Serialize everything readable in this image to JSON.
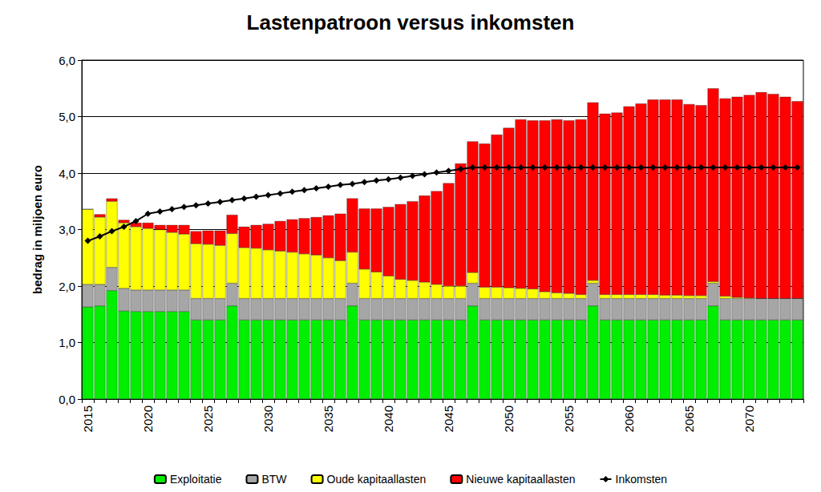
{
  "chart_data": {
    "type": "bar",
    "title": "Lastenpatroon versus inkomsten",
    "y_label": "bedrag in miljoen euro",
    "stacked": true,
    "grid": true,
    "legend": "bottom",
    "categories": [
      "2015",
      null,
      null,
      null,
      null,
      "2020",
      null,
      null,
      null,
      null,
      "2025",
      null,
      null,
      null,
      null,
      "2030",
      null,
      null,
      null,
      null,
      "2035",
      null,
      null,
      null,
      null,
      "2040",
      null,
      null,
      null,
      null,
      "2045",
      null,
      null,
      null,
      null,
      "2050",
      null,
      null,
      null,
      null,
      "2055",
      null,
      null,
      null,
      null,
      "2060",
      null,
      null,
      null,
      null,
      "2065",
      null,
      null,
      null,
      null,
      "2070",
      null,
      null,
      null,
      null
    ],
    "ylim": [
      0,
      6
    ],
    "yticks": [
      {
        "value": 0,
        "label": "0,0"
      },
      {
        "value": 1,
        "label": "1,0"
      },
      {
        "value": 2,
        "label": "2,0"
      },
      {
        "value": 3,
        "label": "3,0"
      },
      {
        "value": 4,
        "label": "4,0"
      },
      {
        "value": 5,
        "label": "5,0"
      },
      {
        "value": 6,
        "label": "6,0"
      }
    ],
    "series": [
      {
        "name": "Exploitatie",
        "type": "bar",
        "color": "#00ee00",
        "values": [
          1.63,
          1.65,
          1.92,
          1.56,
          1.55,
          1.55,
          1.55,
          1.55,
          1.55,
          1.4,
          1.4,
          1.4,
          1.65,
          1.4,
          1.4,
          1.4,
          1.4,
          1.4,
          1.4,
          1.4,
          1.4,
          1.4,
          1.65,
          1.4,
          1.4,
          1.4,
          1.4,
          1.4,
          1.4,
          1.4,
          1.4,
          1.4,
          1.65,
          1.4,
          1.4,
          1.4,
          1.4,
          1.4,
          1.4,
          1.4,
          1.4,
          1.4,
          1.65,
          1.4,
          1.4,
          1.4,
          1.4,
          1.4,
          1.4,
          1.4,
          1.4,
          1.4,
          1.65,
          1.4,
          1.4,
          1.4,
          1.4,
          1.4,
          1.4,
          1.4
        ]
      },
      {
        "name": "BTW",
        "type": "bar",
        "color": "#a6a6a6",
        "values": [
          0.4,
          0.38,
          0.41,
          0.4,
          0.38,
          0.38,
          0.38,
          0.38,
          0.38,
          0.38,
          0.38,
          0.38,
          0.4,
          0.38,
          0.38,
          0.38,
          0.38,
          0.38,
          0.38,
          0.38,
          0.38,
          0.38,
          0.4,
          0.38,
          0.38,
          0.38,
          0.38,
          0.38,
          0.38,
          0.38,
          0.38,
          0.38,
          0.4,
          0.38,
          0.38,
          0.38,
          0.38,
          0.38,
          0.38,
          0.38,
          0.38,
          0.38,
          0.4,
          0.38,
          0.38,
          0.38,
          0.38,
          0.38,
          0.38,
          0.38,
          0.38,
          0.38,
          0.4,
          0.38,
          0.38,
          0.38,
          0.38,
          0.38,
          0.38,
          0.38
        ]
      },
      {
        "name": "Oude kapitaallasten",
        "type": "bar",
        "color": "#ffff00",
        "values": [
          1.33,
          1.19,
          1.17,
          1.16,
          1.12,
          1.09,
          1.07,
          1.02,
          0.99,
          0.97,
          0.96,
          0.94,
          0.88,
          0.9,
          0.89,
          0.86,
          0.84,
          0.82,
          0.79,
          0.77,
          0.72,
          0.67,
          0.55,
          0.52,
          0.47,
          0.4,
          0.34,
          0.32,
          0.29,
          0.25,
          0.22,
          0.22,
          0.19,
          0.2,
          0.2,
          0.19,
          0.18,
          0.17,
          0.12,
          0.1,
          0.09,
          0.07,
          0.05,
          0.07,
          0.07,
          0.07,
          0.07,
          0.07,
          0.06,
          0.06,
          0.05,
          0.05,
          0.03,
          0.04,
          0.02,
          0.01,
          0,
          0,
          0,
          0
        ]
      },
      {
        "name": "Nieuwe kapitaallasten",
        "type": "bar",
        "color": "#ff0000",
        "values": [
          0,
          0.05,
          0.05,
          0.05,
          0.07,
          0.1,
          0.08,
          0.13,
          0.16,
          0.22,
          0.24,
          0.26,
          0.33,
          0.37,
          0.41,
          0.46,
          0.53,
          0.58,
          0.63,
          0.67,
          0.75,
          0.83,
          0.95,
          1.07,
          1.12,
          1.22,
          1.33,
          1.4,
          1.53,
          1.65,
          1.82,
          2.17,
          2.32,
          2.54,
          2.7,
          2.83,
          2.99,
          2.98,
          3.03,
          3.07,
          3.06,
          3.1,
          3.15,
          3.2,
          3.22,
          3.33,
          3.38,
          3.45,
          3.46,
          3.46,
          3.39,
          3.37,
          3.42,
          3.5,
          3.55,
          3.59,
          3.65,
          3.62,
          3.57,
          3.49
        ]
      },
      {
        "name": "Inkomsten",
        "type": "line",
        "color": "#000000",
        "marker": "diamond",
        "values": [
          2.8,
          2.88,
          2.97,
          3.05,
          3.15,
          3.28,
          3.32,
          3.36,
          3.4,
          3.43,
          3.46,
          3.49,
          3.52,
          3.55,
          3.58,
          3.61,
          3.64,
          3.67,
          3.7,
          3.73,
          3.76,
          3.79,
          3.81,
          3.84,
          3.87,
          3.89,
          3.92,
          3.95,
          3.98,
          4.01,
          4.04,
          4.07,
          4.1,
          4.1,
          4.1,
          4.1,
          4.1,
          4.1,
          4.1,
          4.1,
          4.1,
          4.1,
          4.1,
          4.1,
          4.1,
          4.1,
          4.1,
          4.1,
          4.1,
          4.1,
          4.1,
          4.1,
          4.1,
          4.1,
          4.1,
          4.1,
          4.1,
          4.1,
          4.1,
          4.1
        ]
      }
    ]
  }
}
